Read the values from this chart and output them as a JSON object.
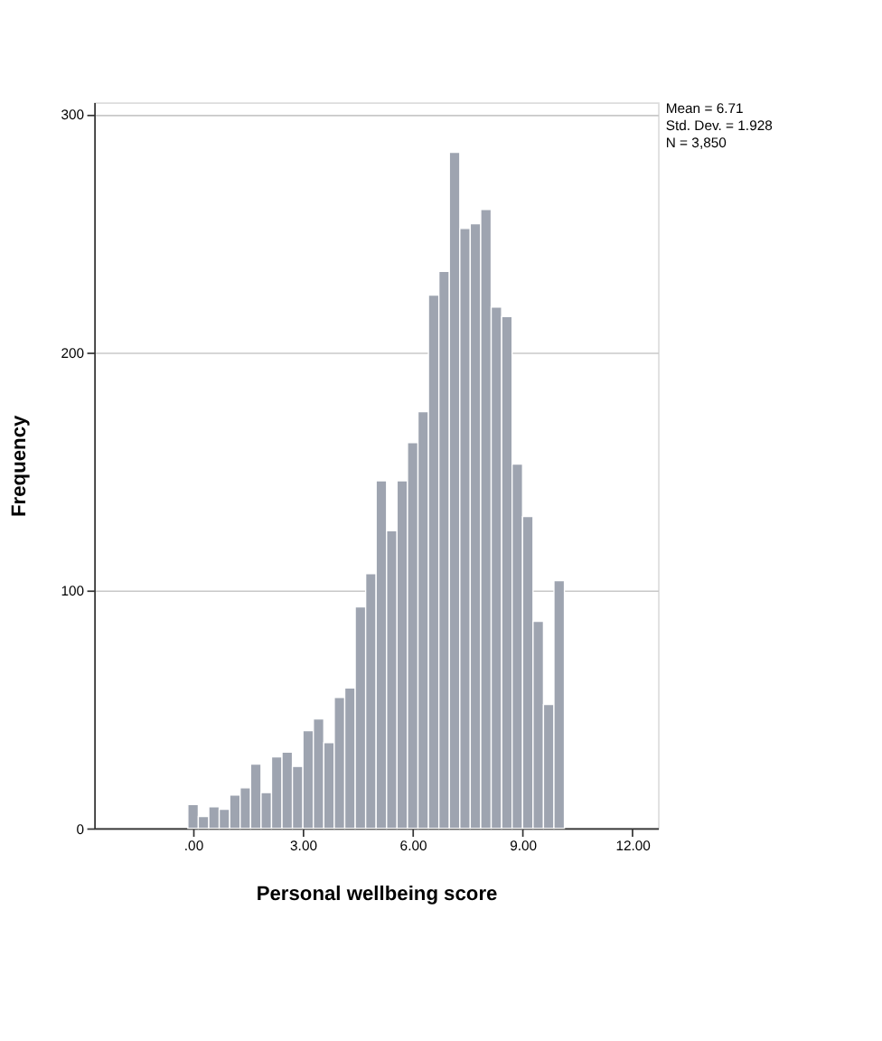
{
  "chart_data": {
    "type": "histogram",
    "xlabel": "Personal wellbeing score",
    "ylabel": "Frequency",
    "bins": [
      -0.143,
      0.143,
      0.429,
      0.714,
      1.0,
      1.286,
      1.571,
      1.857,
      2.143,
      2.429,
      2.714,
      3.0,
      3.286,
      3.571,
      3.857,
      4.143,
      4.429,
      4.714,
      5.0,
      5.286,
      5.571,
      5.857,
      6.143,
      6.429,
      6.714,
      7.0,
      7.286,
      7.571,
      7.857,
      8.143,
      8.429,
      8.714,
      9.0,
      9.286,
      9.571,
      9.857,
      10.143
    ],
    "values": [
      10,
      5,
      9,
      8,
      14,
      17,
      27,
      15,
      30,
      32,
      26,
      41,
      46,
      36,
      55,
      59,
      93,
      107,
      146,
      125,
      146,
      162,
      175,
      224,
      234,
      284,
      252,
      254,
      260,
      219,
      215,
      153,
      131,
      87,
      52,
      104
    ],
    "color": "#9ea4b0",
    "xlim": [
      -2.7,
      12.7
    ],
    "xticks": [
      {
        "value": 0,
        "label": ".00"
      },
      {
        "value": 3,
        "label": "3.00"
      },
      {
        "value": 6,
        "label": "6.00"
      },
      {
        "value": 9,
        "label": "9.00"
      },
      {
        "value": 12,
        "label": "12.00"
      }
    ],
    "ylim": [
      0,
      305
    ],
    "yticks": [
      0,
      100,
      200,
      300
    ],
    "grid": "y",
    "annotations": [
      "Mean = 6.71",
      "Std. Dev. = 1.928",
      "N = 3,850"
    ]
  }
}
